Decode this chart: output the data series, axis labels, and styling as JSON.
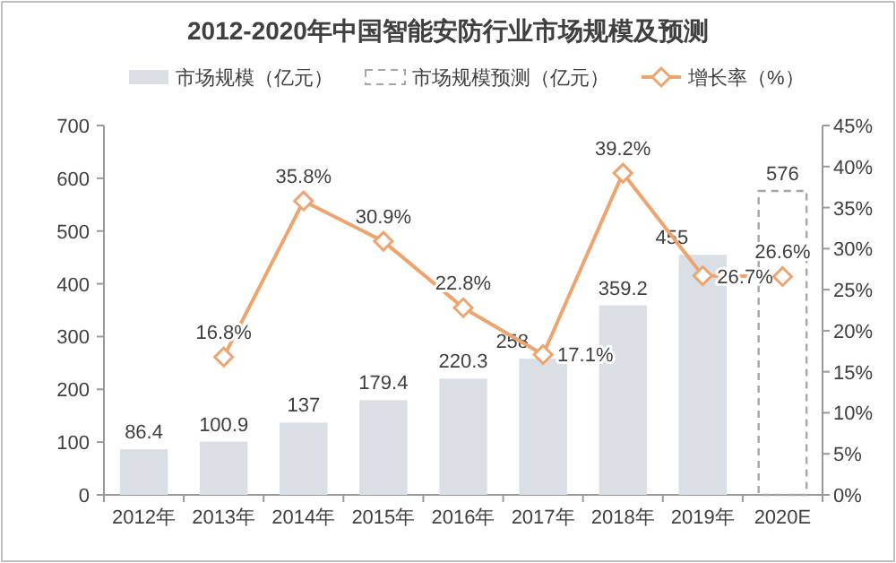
{
  "chart_data": {
    "type": "bar",
    "title": "2012-2020年中国智能安防行业市场规模及预测",
    "categories": [
      "2012年",
      "2013年",
      "2014年",
      "2015年",
      "2016年",
      "2017年",
      "2018年",
      "2019年",
      "2020E"
    ],
    "series": [
      {
        "name": "市场规模（亿元）",
        "color": "#dadee5",
        "values": [
          86.4,
          100.9,
          137,
          179.4,
          220.3,
          258,
          359.2,
          455,
          null
        ],
        "value_labels": [
          "86.4",
          "100.9",
          "137",
          "179.4",
          "220.3",
          "258",
          "359.2",
          "455",
          null
        ]
      },
      {
        "name": "市场规模预测（亿元）",
        "color": "#a6a6a6",
        "line_style": "dashed",
        "values": [
          null,
          null,
          null,
          null,
          null,
          null,
          null,
          null,
          576
        ],
        "value_labels": [
          null,
          null,
          null,
          null,
          null,
          null,
          null,
          null,
          "576"
        ]
      },
      {
        "name": "增长率（%）",
        "type": "line",
        "axis": "y2",
        "color": "#eda46f",
        "marker": "diamond",
        "values": [
          null,
          16.8,
          35.8,
          30.9,
          22.8,
          17.1,
          39.2,
          26.7,
          26.6
        ],
        "value_labels": [
          null,
          "16.8%",
          "35.8%",
          "30.9%",
          "22.8%",
          "17.1%",
          "39.2%",
          "26.7%",
          "26.6%"
        ]
      }
    ],
    "ylim": [
      0,
      700
    ],
    "yticks": [
      0,
      100,
      200,
      300,
      400,
      500,
      600,
      700
    ],
    "y2lim": [
      0,
      45
    ],
    "y2ticks": [
      {
        "value": 0,
        "label": "0%"
      },
      {
        "value": 5,
        "label": "5%"
      },
      {
        "value": 10,
        "label": "10%"
      },
      {
        "value": 15,
        "label": "15%"
      },
      {
        "value": 20,
        "label": "20%"
      },
      {
        "value": 25,
        "label": "25%"
      },
      {
        "value": 30,
        "label": "30%"
      },
      {
        "value": 35,
        "label": "35%"
      },
      {
        "value": 40,
        "label": "40%"
      },
      {
        "value": 45,
        "label": "45%"
      }
    ],
    "legend": "top",
    "grid": false
  }
}
